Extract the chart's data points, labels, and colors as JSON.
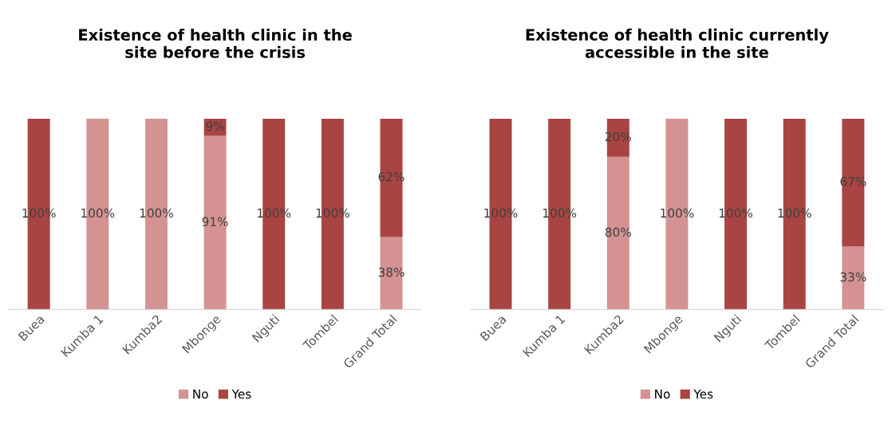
{
  "chart_data": [
    {
      "type": "bar",
      "title": "Existence of health clinic in the\nsite before the crisis",
      "stacked": true,
      "legend": "bottom",
      "tick_labels": "x",
      "grid": false,
      "categories": [
        "Buea",
        "Kumba 1",
        "Kumba2",
        "Mbonge",
        "Nguti",
        "Tombel",
        "Grand Total"
      ],
      "series": [
        {
          "name": "No",
          "color": "#d49392",
          "values": [
            0,
            100,
            100,
            91,
            0,
            0,
            38
          ],
          "value_labels": [
            null,
            "100%",
            "100%",
            "91%",
            null,
            null,
            "38%"
          ]
        },
        {
          "name": "Yes",
          "color": "#a94442",
          "values": [
            100,
            0,
            0,
            9,
            100,
            100,
            62
          ],
          "value_labels": [
            "100%",
            null,
            null,
            "9%",
            "100%",
            "100%",
            "62%"
          ]
        }
      ]
    },
    {
      "type": "bar",
      "title": "Existence of health clinic currently\naccessible in the site",
      "stacked": true,
      "legend": "bottom",
      "tick_labels": "x",
      "grid": false,
      "categories": [
        "Buea",
        "Kumba 1",
        "Kumba2",
        "Mbonge",
        "Nguti",
        "Tombel",
        "Grand Total"
      ],
      "series": [
        {
          "name": "No",
          "color": "#d49392",
          "values": [
            0,
            0,
            80,
            100,
            0,
            0,
            33
          ],
          "value_labels": [
            null,
            null,
            "80%",
            "100%",
            null,
            null,
            "33%"
          ]
        },
        {
          "name": "Yes",
          "color": "#a94442",
          "values": [
            100,
            100,
            20,
            0,
            100,
            100,
            67
          ],
          "value_labels": [
            "100%",
            "100%",
            "20%",
            null,
            "100%",
            "100%",
            "67%"
          ]
        }
      ]
    }
  ]
}
